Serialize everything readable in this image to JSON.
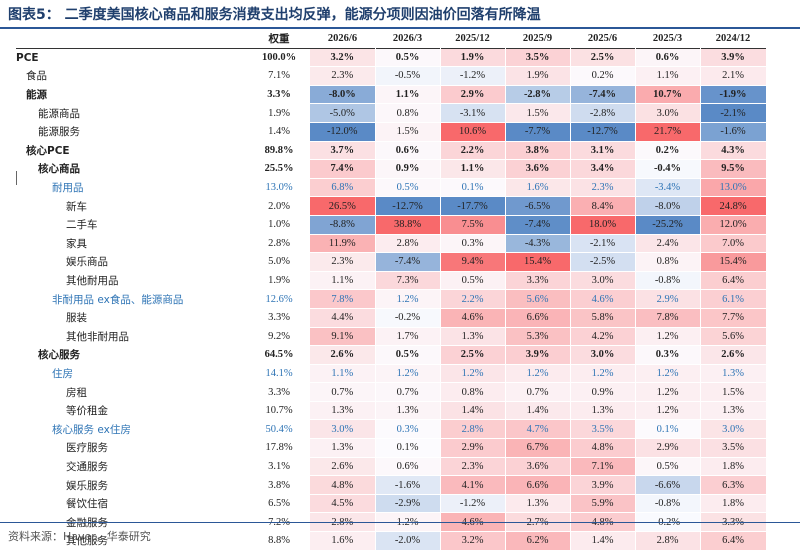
{
  "title": "图表5： 二季度美国核心商品和服务消费支出均反弹，能源分项则因油价回落有所降温",
  "source": "资料来源：Haver，华泰研究",
  "chart_data": {
    "type": "table",
    "header": {
      "label": "",
      "weight": "权重",
      "periods": [
        "2026/6",
        "2026/3",
        "2025/12",
        "2025/9",
        "2025/6",
        "2025/3",
        "2024/12"
      ]
    },
    "rows": [
      {
        "label": "PCE",
        "indent": 0,
        "bold": true,
        "blue": false,
        "weight": "100.0%",
        "values": [
          "3.2%",
          "0.5%",
          "1.9%",
          "3.5%",
          "2.5%",
          "0.6%",
          "3.9%"
        ]
      },
      {
        "label": "食品",
        "indent": 1,
        "bold": false,
        "blue": false,
        "weight": "7.1%",
        "values": [
          "2.3%",
          "-0.5%",
          "-1.2%",
          "1.9%",
          "0.2%",
          "1.1%",
          "2.1%"
        ]
      },
      {
        "label": "能源",
        "indent": 1,
        "bold": true,
        "blue": false,
        "weight": "3.3%",
        "values": [
          "-8.0%",
          "1.1%",
          "2.9%",
          "-2.8%",
          "-7.4%",
          "10.7%",
          "-1.9%"
        ]
      },
      {
        "label": "能源商品",
        "indent": 2,
        "bold": false,
        "blue": false,
        "weight": "1.9%",
        "values": [
          "-5.0%",
          "0.8%",
          "-3.1%",
          "1.5%",
          "-2.8%",
          "3.0%",
          "-2.1%"
        ]
      },
      {
        "label": "能源服务",
        "indent": 2,
        "bold": false,
        "blue": false,
        "weight": "1.4%",
        "values": [
          "-12.0%",
          "1.5%",
          "10.6%",
          "-7.7%",
          "-12.7%",
          "21.7%",
          "-1.6%"
        ]
      },
      {
        "label": "核心PCE",
        "indent": 1,
        "bold": true,
        "blue": false,
        "weight": "89.8%",
        "values": [
          "3.7%",
          "0.6%",
          "2.2%",
          "3.8%",
          "3.1%",
          "0.2%",
          "4.3%"
        ]
      },
      {
        "label": "核心商品",
        "indent": 2,
        "bold": true,
        "blue": false,
        "weight": "25.5%",
        "values": [
          "7.4%",
          "0.9%",
          "1.1%",
          "3.6%",
          "3.4%",
          "-0.4%",
          "9.5%"
        ]
      },
      {
        "label": "耐用品",
        "indent": 3,
        "bold": false,
        "blue": true,
        "weight": "13.0%",
        "values": [
          "6.8%",
          "0.5%",
          "0.1%",
          "1.6%",
          "2.3%",
          "-3.4%",
          "13.0%"
        ]
      },
      {
        "label": "新车",
        "indent": 4,
        "bold": false,
        "blue": false,
        "weight": "2.0%",
        "values": [
          "26.5%",
          "-12.7%",
          "-17.7%",
          "-6.5%",
          "8.4%",
          "-8.0%",
          "24.8%"
        ]
      },
      {
        "label": "二手车",
        "indent": 4,
        "bold": false,
        "blue": false,
        "weight": "1.0%",
        "values": [
          "-8.8%",
          "38.8%",
          "7.5%",
          "-7.4%",
          "18.0%",
          "-25.2%",
          "12.0%"
        ]
      },
      {
        "label": "家具",
        "indent": 4,
        "bold": false,
        "blue": false,
        "weight": "2.8%",
        "values": [
          "11.9%",
          "2.8%",
          "0.3%",
          "-4.3%",
          "-2.1%",
          "2.4%",
          "7.0%"
        ]
      },
      {
        "label": "娱乐商品",
        "indent": 4,
        "bold": false,
        "blue": false,
        "weight": "5.0%",
        "values": [
          "2.3%",
          "-7.4%",
          "9.4%",
          "15.4%",
          "-2.5%",
          "0.8%",
          "15.4%"
        ]
      },
      {
        "label": "其他耐用品",
        "indent": 4,
        "bold": false,
        "blue": false,
        "weight": "1.9%",
        "values": [
          "1.1%",
          "7.3%",
          "0.5%",
          "3.3%",
          "3.0%",
          "-0.8%",
          "6.4%"
        ]
      },
      {
        "label": "非耐用品 ex食品、能源商品",
        "indent": 3,
        "bold": false,
        "blue": true,
        "weight": "12.6%",
        "values": [
          "7.8%",
          "1.2%",
          "2.2%",
          "5.6%",
          "4.6%",
          "2.9%",
          "6.1%"
        ]
      },
      {
        "label": "服装",
        "indent": 4,
        "bold": false,
        "blue": false,
        "weight": "3.3%",
        "values": [
          "4.4%",
          "-0.2%",
          "4.6%",
          "6.6%",
          "5.8%",
          "7.8%",
          "7.7%"
        ]
      },
      {
        "label": "其他非耐用品",
        "indent": 4,
        "bold": false,
        "blue": false,
        "weight": "9.2%",
        "values": [
          "9.1%",
          "1.7%",
          "1.3%",
          "5.3%",
          "4.2%",
          "1.2%",
          "5.6%"
        ]
      },
      {
        "label": "核心服务",
        "indent": 2,
        "bold": true,
        "blue": false,
        "weight": "64.5%",
        "values": [
          "2.6%",
          "0.5%",
          "2.5%",
          "3.9%",
          "3.0%",
          "0.3%",
          "2.6%"
        ]
      },
      {
        "label": "住房",
        "indent": 3,
        "bold": false,
        "blue": true,
        "weight": "14.1%",
        "values": [
          "1.1%",
          "1.2%",
          "1.2%",
          "1.2%",
          "1.2%",
          "1.2%",
          "1.3%"
        ]
      },
      {
        "label": "房租",
        "indent": 4,
        "bold": false,
        "blue": false,
        "weight": "3.3%",
        "values": [
          "0.7%",
          "0.7%",
          "0.8%",
          "0.7%",
          "0.9%",
          "1.2%",
          "1.5%"
        ]
      },
      {
        "label": "等价租金",
        "indent": 4,
        "bold": false,
        "blue": false,
        "weight": "10.7%",
        "values": [
          "1.3%",
          "1.3%",
          "1.4%",
          "1.4%",
          "1.3%",
          "1.2%",
          "1.3%"
        ]
      },
      {
        "label": "核心服务 ex住房",
        "indent": 3,
        "bold": false,
        "blue": true,
        "weight": "50.4%",
        "values": [
          "3.0%",
          "0.3%",
          "2.8%",
          "4.7%",
          "3.5%",
          "0.1%",
          "3.0%"
        ]
      },
      {
        "label": "医疗服务",
        "indent": 4,
        "bold": false,
        "blue": false,
        "weight": "17.8%",
        "values": [
          "1.3%",
          "0.1%",
          "2.9%",
          "6.7%",
          "4.8%",
          "2.9%",
          "3.5%"
        ]
      },
      {
        "label": "交通服务",
        "indent": 4,
        "bold": false,
        "blue": false,
        "weight": "3.1%",
        "values": [
          "2.6%",
          "0.6%",
          "2.3%",
          "3.6%",
          "7.1%",
          "0.5%",
          "1.8%"
        ]
      },
      {
        "label": "娱乐服务",
        "indent": 4,
        "bold": false,
        "blue": false,
        "weight": "3.8%",
        "values": [
          "4.8%",
          "-1.6%",
          "4.1%",
          "6.6%",
          "3.9%",
          "-6.6%",
          "6.3%"
        ]
      },
      {
        "label": "餐饮住宿",
        "indent": 4,
        "bold": false,
        "blue": false,
        "weight": "6.5%",
        "values": [
          "4.5%",
          "-2.9%",
          "-1.2%",
          "1.3%",
          "5.9%",
          "-0.8%",
          "1.8%"
        ]
      },
      {
        "label": "金融服务",
        "indent": 4,
        "bold": false,
        "blue": false,
        "weight": "7.2%",
        "values": [
          "2.8%",
          "1.2%",
          "4.6%",
          "2.7%",
          "4.8%",
          "-0.2%",
          "3.3%"
        ]
      },
      {
        "label": "其他服务",
        "indent": 4,
        "bold": false,
        "blue": false,
        "weight": "8.8%",
        "values": [
          "1.6%",
          "-2.0%",
          "3.2%",
          "6.2%",
          "1.4%",
          "2.8%",
          "6.4%"
        ]
      }
    ],
    "colors": {
      "positive_max": "#f8696b",
      "negative_max": "#5a8ac6",
      "neutral": "#fcfcff"
    },
    "color_scale": "per-column diverging (red = higher, blue = lower)"
  }
}
